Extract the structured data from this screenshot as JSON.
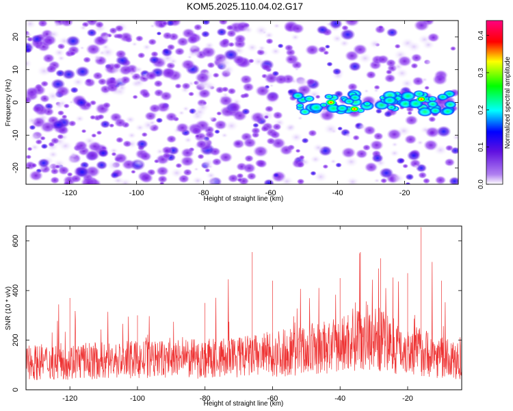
{
  "title": "KOM5.2025.110.04.02.G17",
  "chart_data": [
    {
      "type": "heatmap",
      "xlabel": "Height of straight line (km)",
      "ylabel": "Frequency (Hz)",
      "xlim": [
        -133,
        -4
      ],
      "ylim": [
        -25,
        25
      ],
      "xticks": [
        -120,
        -100,
        -80,
        -60,
        -40,
        -20
      ],
      "yticks": [
        -20,
        -10,
        0,
        10,
        20
      ],
      "colorbar": {
        "label": "Normalized spectral amplitude",
        "range": [
          0,
          0.44
        ],
        "ticks": [
          0.0,
          0.1,
          0.2,
          0.3,
          0.4
        ],
        "tick_labels": [
          "0.0",
          "0.1",
          "0.2",
          "0.3",
          "0.4"
        ]
      },
      "colormap": [
        "#ffffff",
        "#8a2be2",
        "#0000ff",
        "#00ffff",
        "#00ff00",
        "#ffff00",
        "#ff8000",
        "#ff0000",
        "#ff00ff"
      ],
      "signal_band": {
        "x_range": [
          -52,
          -6
        ],
        "freq_hz": 0,
        "peaks": [
          {
            "x": -42,
            "y": 0,
            "value": 0.44
          },
          {
            "x": -35,
            "y": -2,
            "value": 0.44
          },
          {
            "x": -15,
            "y": 1,
            "value": 0.44
          }
        ]
      }
    },
    {
      "type": "line",
      "xlabel": "Height of straight line (km)",
      "ylabel": "SNR (10 * v/v)",
      "xlim": [
        -133,
        -4
      ],
      "ylim": [
        0,
        660
      ],
      "xticks": [
        -120,
        -100,
        -80,
        -60,
        -40,
        -20
      ],
      "yticks": [
        0,
        200,
        400,
        600
      ],
      "series": [
        {
          "color": "#ee3333",
          "envelope": [
            {
              "x": -133,
              "mean": 110,
              "max": 270
            },
            {
              "x": -120,
              "mean": 115,
              "max": 370
            },
            {
              "x": -100,
              "mean": 120,
              "max": 300
            },
            {
              "x": -80,
              "mean": 125,
              "max": 350
            },
            {
              "x": -66,
              "mean": 135,
              "max": 555
            },
            {
              "x": -60,
              "mean": 145,
              "max": 440
            },
            {
              "x": -40,
              "mean": 175,
              "max": 450
            },
            {
              "x": -34,
              "mean": 230,
              "max": 555
            },
            {
              "x": -28,
              "mean": 200,
              "max": 530
            },
            {
              "x": -20,
              "mean": 160,
              "max": 470
            },
            {
              "x": -16,
              "mean": 155,
              "max": 655
            },
            {
              "x": -10,
              "mean": 130,
              "max": 440
            },
            {
              "x": -4,
              "mean": 110,
              "max": 260
            }
          ]
        }
      ]
    }
  ]
}
